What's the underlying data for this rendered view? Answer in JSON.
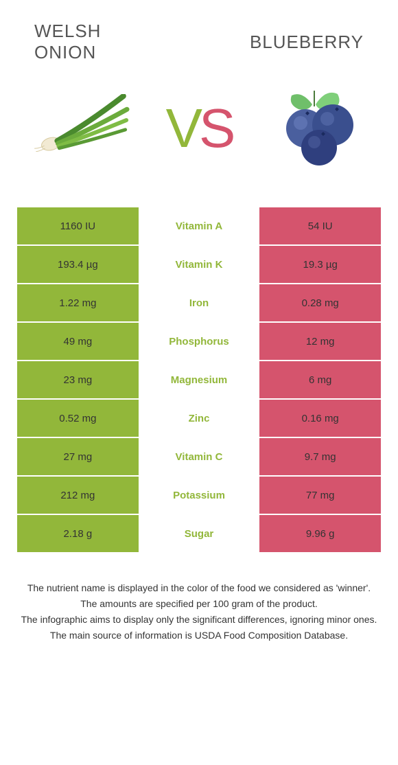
{
  "colors": {
    "left_bg": "#92b73a",
    "right_bg": "#d5546d",
    "vs_v": "#92b73a",
    "vs_s": "#d5546d",
    "mid_text_winner_left": "#92b73a",
    "mid_text_winner_right": "#d5546d",
    "title_color": "#555555",
    "cell_text": "#333333"
  },
  "left_food": "Welsh onion",
  "right_food": "Blueberry",
  "rows": [
    {
      "left": "1160 IU",
      "mid": "Vitamin A",
      "right": "54 IU",
      "winner": "left"
    },
    {
      "left": "193.4 µg",
      "mid": "Vitamin K",
      "right": "19.3 µg",
      "winner": "left"
    },
    {
      "left": "1.22 mg",
      "mid": "Iron",
      "right": "0.28 mg",
      "winner": "left"
    },
    {
      "left": "49 mg",
      "mid": "Phosphorus",
      "right": "12 mg",
      "winner": "left"
    },
    {
      "left": "23 mg",
      "mid": "Magnesium",
      "right": "6 mg",
      "winner": "left"
    },
    {
      "left": "0.52 mg",
      "mid": "Zinc",
      "right": "0.16 mg",
      "winner": "left"
    },
    {
      "left": "27 mg",
      "mid": "Vitamin C",
      "right": "9.7 mg",
      "winner": "left"
    },
    {
      "left": "212 mg",
      "mid": "Potassium",
      "right": "77 mg",
      "winner": "left"
    },
    {
      "left": "2.18 g",
      "mid": "Sugar",
      "right": "9.96 g",
      "winner": "left"
    }
  ],
  "footer": [
    "The nutrient name is displayed in the color of the food we considered as 'winner'.",
    "The amounts are specified per 100 gram of the product.",
    "The infographic aims to display only the significant differences, ignoring minor ones.",
    "The main source of information is USDA Food Composition Database."
  ]
}
